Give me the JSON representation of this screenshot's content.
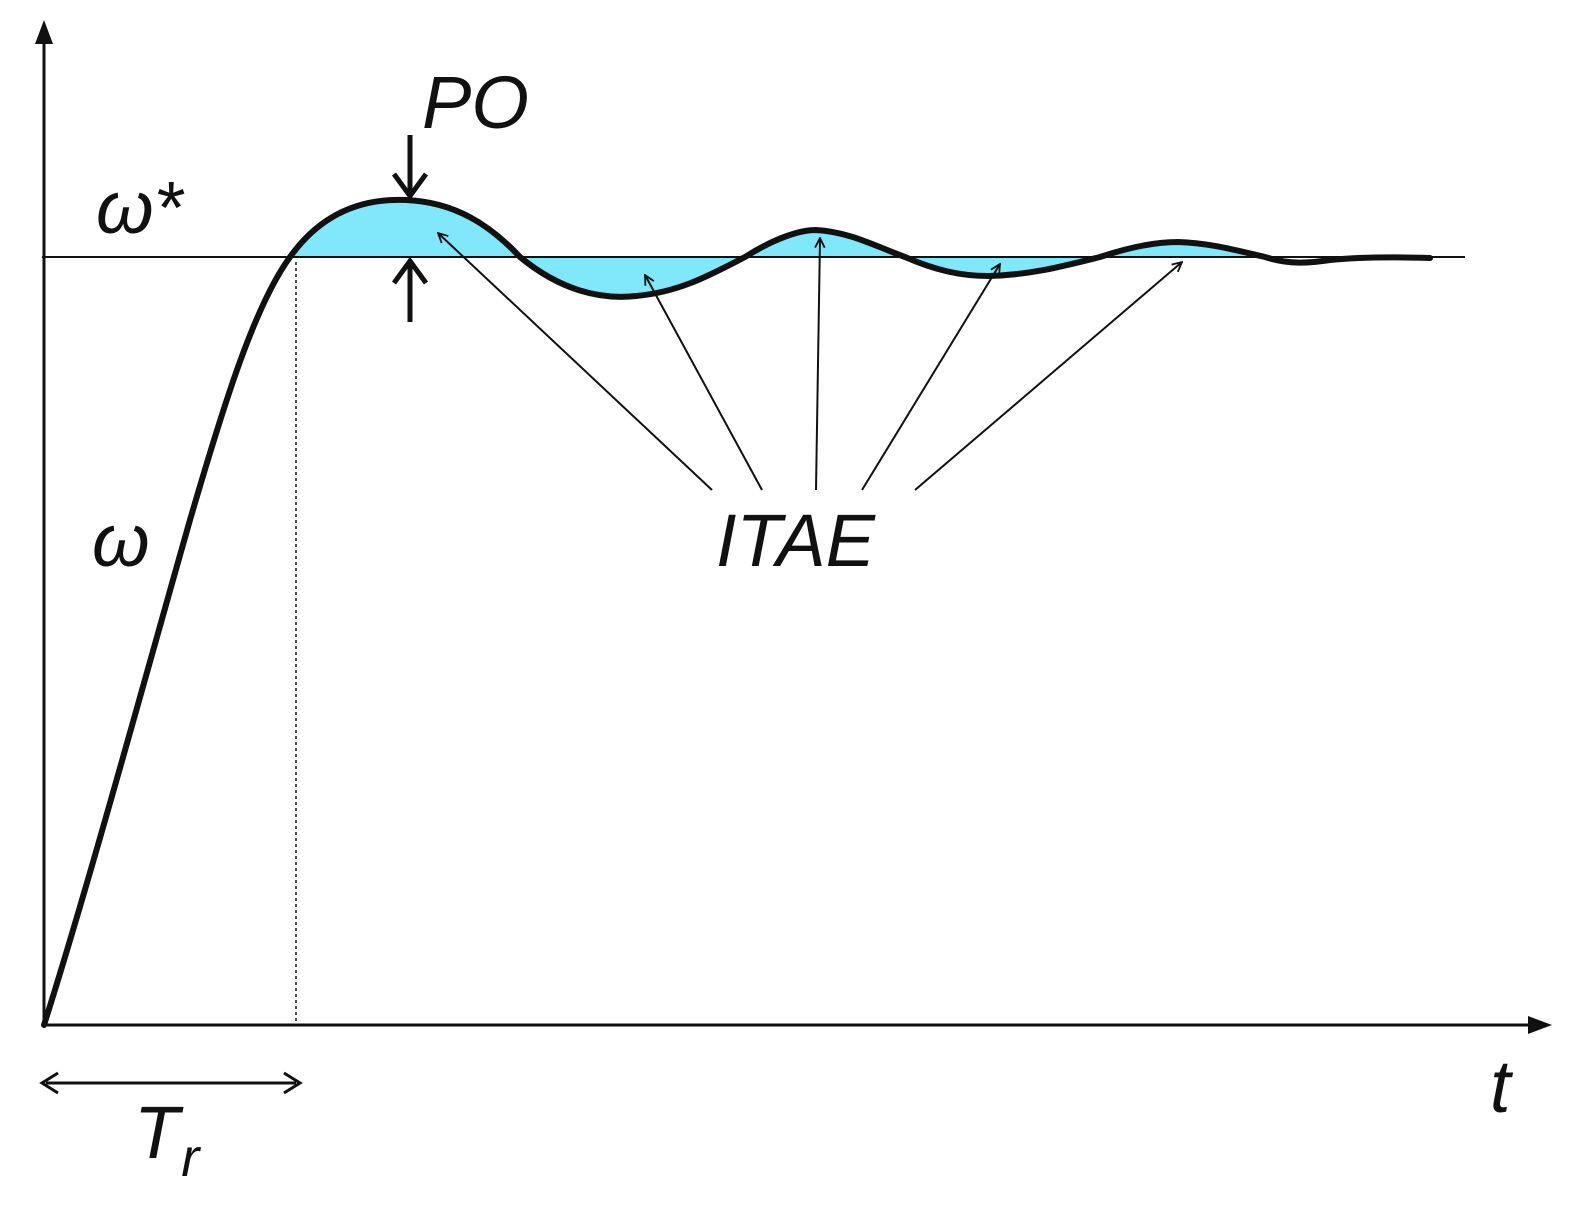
{
  "labels": {
    "setpoint": "ω*",
    "response": "ω",
    "overshoot": "PO",
    "error_metric": "ITAE",
    "time_axis": "t",
    "rise_time_main": "T",
    "rise_time_sub": "r"
  },
  "colors": {
    "error_fill": "#80E8FA",
    "line": "#111111",
    "background": "#ffffff"
  }
}
